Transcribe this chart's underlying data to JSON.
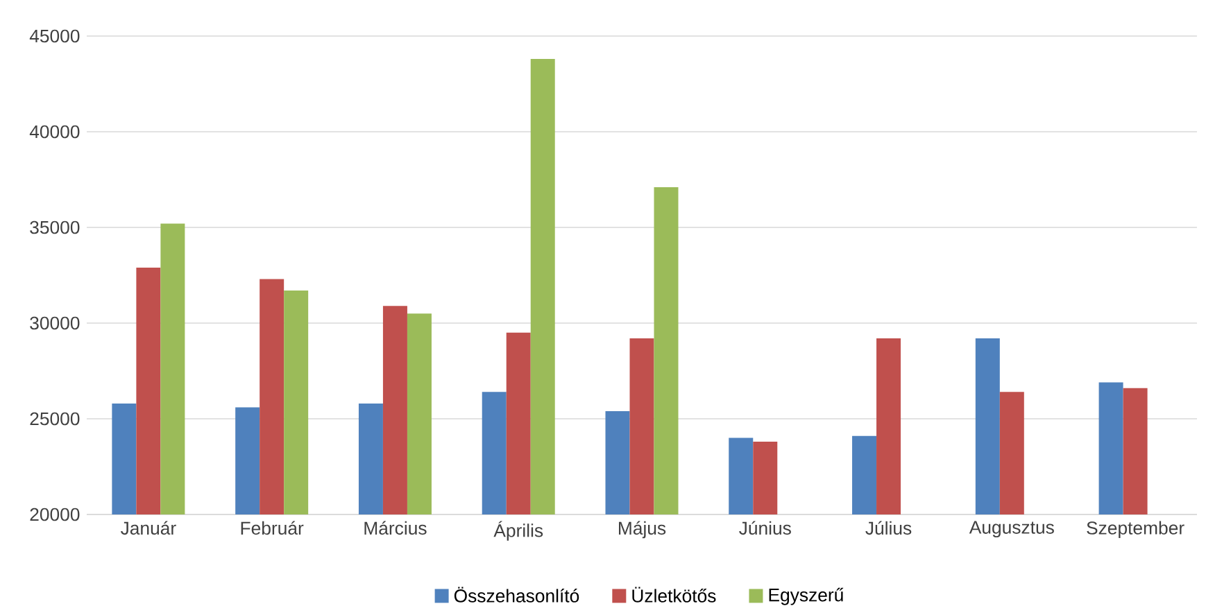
{
  "chart_data": {
    "type": "bar",
    "categories": [
      "Január",
      "Február",
      "Március",
      "Április",
      "Május",
      "Június",
      "Július",
      "Augusztus",
      "Szeptember"
    ],
    "series": [
      {
        "name": "Összehasonlító",
        "color": "#4f81bd",
        "values": [
          25800,
          25600,
          25800,
          26400,
          25400,
          24000,
          24100,
          29200,
          26900
        ]
      },
      {
        "name": "Üzletkötős",
        "color": "#c0504d",
        "values": [
          32900,
          32300,
          30900,
          29500,
          29200,
          23800,
          29200,
          26400,
          26600
        ]
      },
      {
        "name": "Egyszerű",
        "color": "#9bbb59",
        "values": [
          35200,
          31700,
          30500,
          43800,
          37100,
          null,
          null,
          null,
          null
        ]
      }
    ],
    "ylim": [
      20000,
      45000
    ],
    "yticks": [
      20000,
      25000,
      30000,
      35000,
      40000,
      45000
    ],
    "grid": "y",
    "legend": "bottom"
  }
}
